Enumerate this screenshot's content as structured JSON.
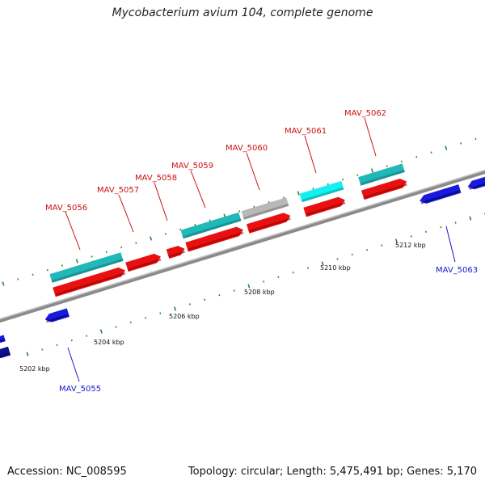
{
  "title": "Mycobacterium avium 104, complete genome",
  "footer": {
    "accession": "Accession: NC_008595",
    "summary": "Topology: circular; Length: 5,475,491 bp; Genes: 5,170"
  },
  "colors": {
    "backbone": "#8a8a8a",
    "tick": "#2a8a2a",
    "cds": "#e81010",
    "gene_teal": "#20b8b8",
    "gene_cyan": "#14f0f0",
    "pseudo_gray": "#b8b8b8",
    "reverse": "#1a1adc",
    "reverse_dark": "#10108a",
    "label_forward": "#cc1111",
    "label_reverse": "#1a1acc"
  },
  "map": {
    "axis_unit": "kbp",
    "ticks": [
      {
        "kbp": 5202,
        "label": "5202 kbp"
      },
      {
        "kbp": 5204,
        "label": "5204 kbp"
      },
      {
        "kbp": 5206,
        "label": "5206 kbp"
      },
      {
        "kbp": 5208,
        "label": "5208 kbp"
      },
      {
        "kbp": 5210,
        "label": "5210 kbp"
      },
      {
        "kbp": 5212,
        "label": "5212 kbp"
      }
    ],
    "genes": [
      {
        "label": "MAV_5055",
        "strand": "reverse"
      },
      {
        "label": "MAV_5056",
        "strand": "forward"
      },
      {
        "label": "MAV_5057",
        "strand": "forward"
      },
      {
        "label": "MAV_5058",
        "strand": "forward"
      },
      {
        "label": "MAV_5059",
        "strand": "forward"
      },
      {
        "label": "MAV_5060",
        "strand": "forward"
      },
      {
        "label": "MAV_5061",
        "strand": "forward"
      },
      {
        "label": "MAV_5062",
        "strand": "forward"
      },
      {
        "label": "MAV_5063",
        "strand": "reverse"
      }
    ]
  }
}
